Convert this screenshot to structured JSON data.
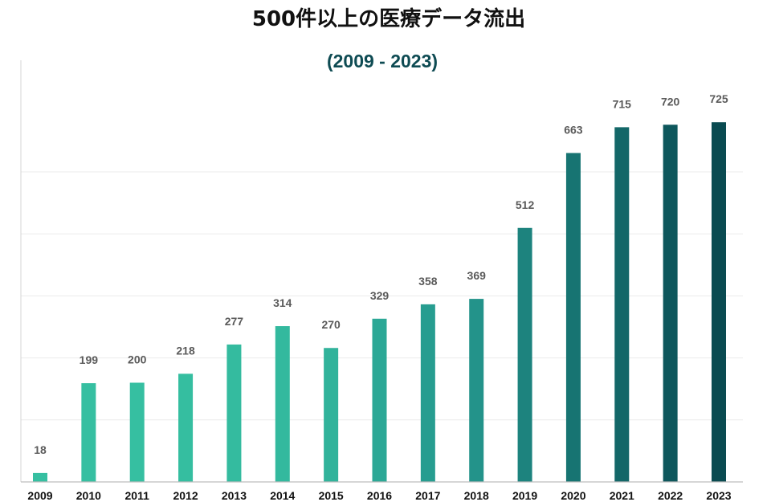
{
  "colors": {
    "title": "#111111",
    "subtitle": "#0e4b53",
    "data_label": "#5a5a5a",
    "tick_label": "#111111"
  },
  "chart_data": {
    "type": "bar",
    "title": "500件以上の医療データ流出",
    "subtitle": "(2009 - 2023)",
    "xlabel": "",
    "ylabel": "",
    "categories": [
      "2009",
      "2010",
      "2011",
      "2012",
      "2013",
      "2014",
      "2015",
      "2016",
      "2017",
      "2018",
      "2019",
      "2020",
      "2021",
      "2022",
      "2023"
    ],
    "values": [
      18,
      199,
      200,
      218,
      277,
      314,
      270,
      329,
      358,
      369,
      512,
      663,
      715,
      720,
      725
    ],
    "bar_colors": [
      "#36bfa1",
      "#36bfa1",
      "#36bfa1",
      "#35bea0",
      "#34bb9f",
      "#33b99e",
      "#31b39b",
      "#2ca896",
      "#279d90",
      "#23938a",
      "#1d837e",
      "#177472",
      "#136768",
      "#0e575c",
      "#0a4b51"
    ],
    "ylim": [
      0,
      850
    ],
    "grid": true,
    "legend": "none"
  }
}
